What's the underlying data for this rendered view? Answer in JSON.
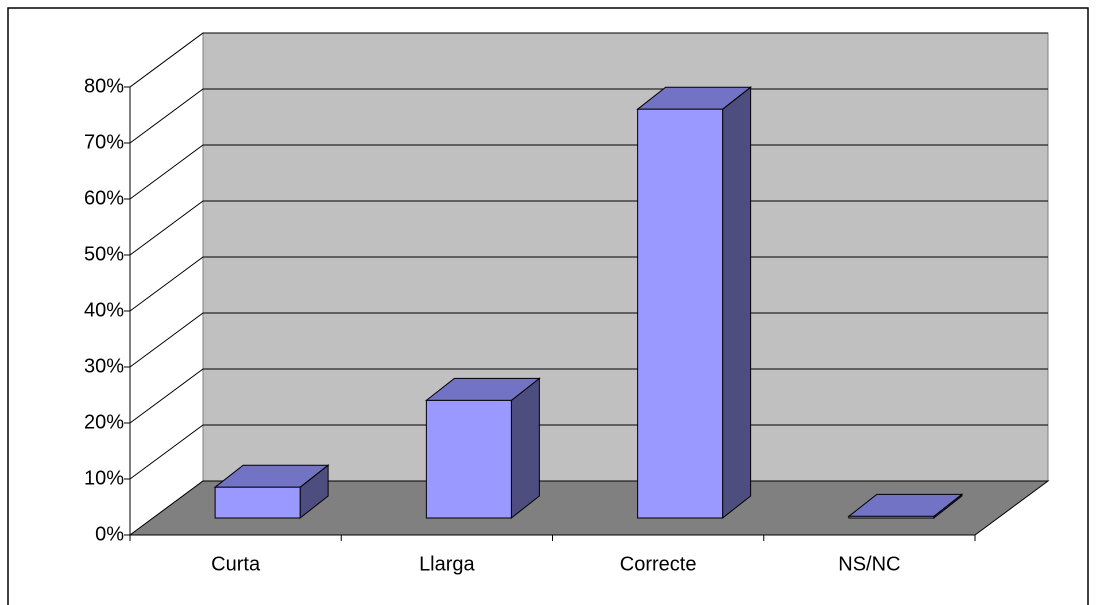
{
  "chart_data": {
    "type": "bar3d",
    "categories": [
      "Curta",
      "Llarga",
      "Correcte",
      "NS/NC"
    ],
    "values": [
      5.5,
      21,
      73,
      0.3
    ],
    "color": "#9999ff",
    "ylim": [
      0,
      80
    ],
    "yticks": [
      {
        "value": 0,
        "label": "0%"
      },
      {
        "value": 10,
        "label": "10%"
      },
      {
        "value": 20,
        "label": "20%"
      },
      {
        "value": 30,
        "label": "30%"
      },
      {
        "value": 40,
        "label": "40%"
      },
      {
        "value": 50,
        "label": "50%"
      },
      {
        "value": 60,
        "label": "60%"
      },
      {
        "value": 70,
        "label": "70%"
      },
      {
        "value": 80,
        "label": "80%"
      }
    ],
    "grid": true
  }
}
